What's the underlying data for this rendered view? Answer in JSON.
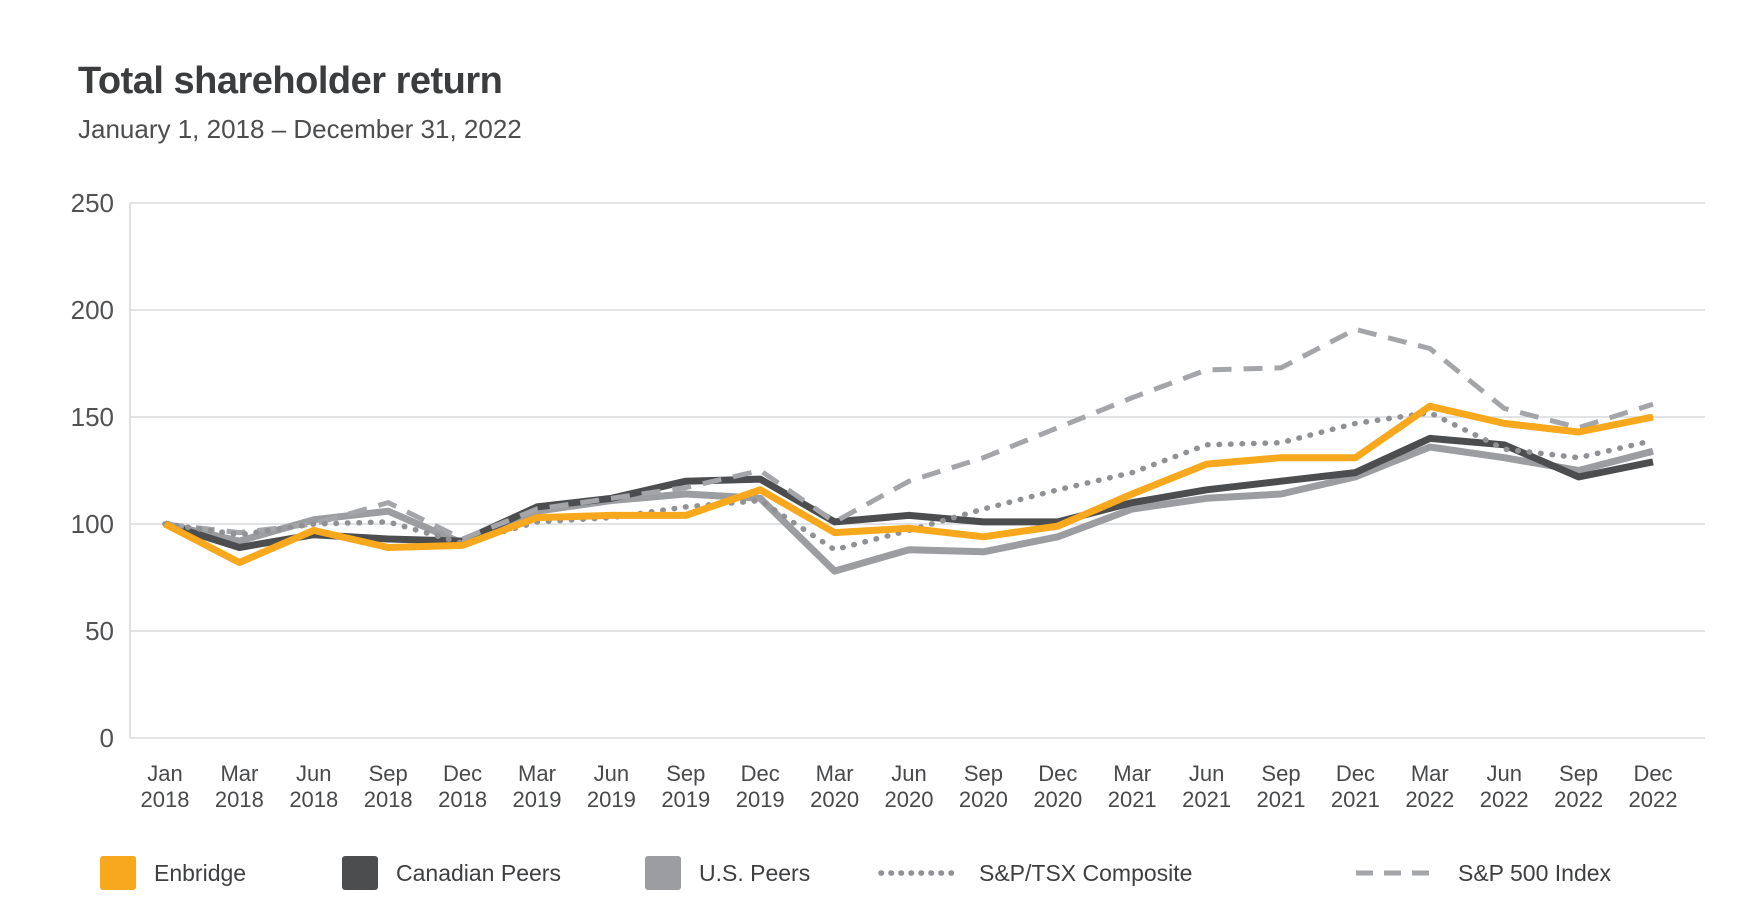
{
  "header": {
    "title": "Total shareholder return",
    "subtitle": "January 1, 2018 – December 31, 2022"
  },
  "chart_data": {
    "type": "line",
    "title": "Total shareholder return",
    "subtitle": "January 1, 2018 – December 31, 2022",
    "xlabel": "",
    "ylabel": "",
    "ylim": [
      0,
      250
    ],
    "y_ticks": [
      0,
      50,
      100,
      150,
      200,
      250
    ],
    "grid": "horizontal",
    "legend_position": "bottom",
    "categories": [
      "Jan 2018",
      "Mar 2018",
      "Jun 2018",
      "Sep 2018",
      "Dec 2018",
      "Mar 2019",
      "Jun 2019",
      "Sep 2019",
      "Dec 2019",
      "Mar 2020",
      "Jun 2020",
      "Sep 2020",
      "Dec 2020",
      "Mar 2021",
      "Jun 2021",
      "Sep 2021",
      "Dec 2021",
      "Mar 2022",
      "Jun 2022",
      "Sep 2022",
      "Dec 2022"
    ],
    "series": [
      {
        "name": "Enbridge",
        "style": "solid",
        "color": "#F7A81C",
        "values": [
          100,
          82,
          97,
          89,
          90,
          103,
          104,
          104,
          116,
          96,
          98,
          94,
          99,
          114,
          128,
          131,
          131,
          155,
          147,
          143,
          150
        ]
      },
      {
        "name": "Canadian Peers",
        "style": "solid",
        "color": "#4C4D4F",
        "values": [
          100,
          89,
          95,
          93,
          92,
          108,
          112,
          120,
          121,
          101,
          104,
          101,
          101,
          110,
          116,
          120,
          124,
          140,
          137,
          122,
          129
        ]
      },
      {
        "name": "U.S. Peers",
        "style": "solid",
        "color": "#9B9DA0",
        "values": [
          100,
          92,
          102,
          106,
          91,
          106,
          111,
          114,
          112,
          78,
          88,
          87,
          94,
          107,
          112,
          114,
          122,
          136,
          131,
          125,
          134
        ]
      },
      {
        "name": "S&P/TSX Composite",
        "style": "dotted",
        "color": "#8F9194",
        "values": [
          100,
          95,
          100,
          101,
          91,
          101,
          103,
          108,
          111,
          88,
          97,
          107,
          116,
          124,
          137,
          138,
          147,
          152,
          135,
          131,
          139
        ]
      },
      {
        "name": "S&P 500 Index",
        "style": "dashed",
        "color": "#A3A5A8",
        "values": [
          100,
          96,
          100,
          110,
          93,
          107,
          112,
          117,
          125,
          101,
          120,
          131,
          145,
          159,
          172,
          173,
          191,
          182,
          154,
          145,
          156
        ]
      }
    ],
    "colors": {
      "grid": "#D9DADB",
      "axis": "#D9DADB",
      "title_text": "#3B3C3E",
      "tick_text": "#48494B"
    }
  }
}
